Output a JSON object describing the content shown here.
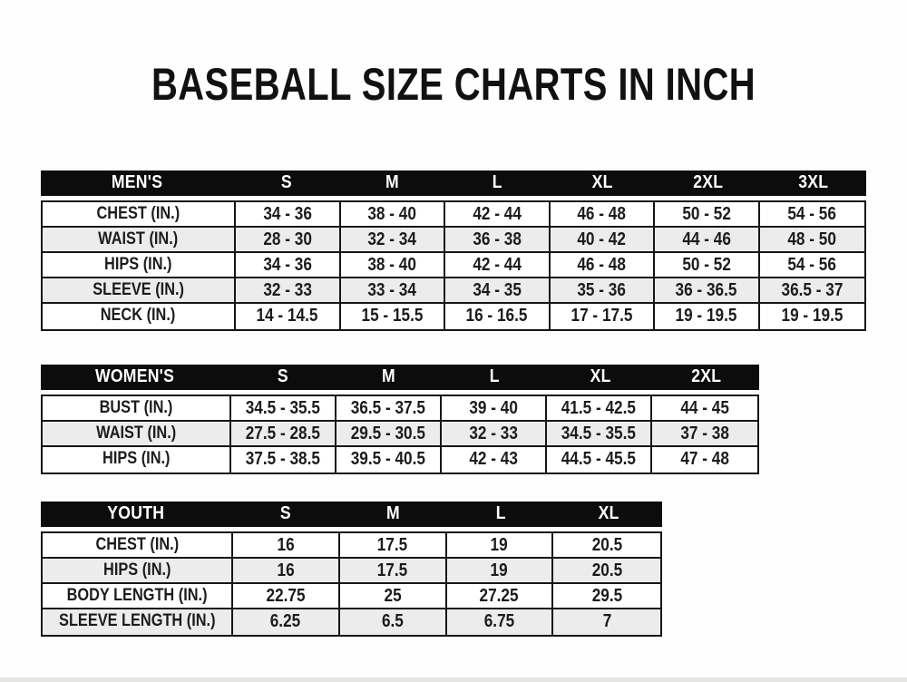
{
  "page": {
    "title": "BASEBALL SIZE CHARTS IN INCH"
  },
  "colors": {
    "page_bg": "#fefefe",
    "header_bg": "#0c0c0c",
    "header_text": "#ffffff",
    "row_alt_bg": "#ececec",
    "border": "#161616",
    "text": "#1c1c1c"
  },
  "tables": [
    {
      "id": "mens",
      "group_label": "MEN'S",
      "columns": [
        "S",
        "M",
        "L",
        "XL",
        "2XL",
        "3XL"
      ],
      "rows": [
        {
          "label": "CHEST (IN.)",
          "values": [
            "34 - 36",
            "38 - 40",
            "42 - 44",
            "46 - 48",
            "50 - 52",
            "54 - 56"
          ]
        },
        {
          "label": "WAIST (IN.)",
          "values": [
            "28 - 30",
            "32 - 34",
            "36 - 38",
            "40 - 42",
            "44 - 46",
            "48 - 50"
          ]
        },
        {
          "label": "HIPS (IN.)",
          "values": [
            "34 - 36",
            "38 - 40",
            "42 - 44",
            "46 - 48",
            "50 - 52",
            "54 - 56"
          ]
        },
        {
          "label": "SLEEVE (IN.)",
          "values": [
            "32 - 33",
            "33 - 34",
            "34 - 35",
            "35 - 36",
            "36 - 36.5",
            "36.5 - 37"
          ]
        },
        {
          "label": "NECK (IN.)",
          "values": [
            "14 - 14.5",
            "15 - 15.5",
            "16 - 16.5",
            "17 - 17.5",
            "19 - 19.5",
            "19 - 19.5"
          ]
        }
      ]
    },
    {
      "id": "womens",
      "group_label": "WOMEN'S",
      "columns": [
        "S",
        "M",
        "L",
        "XL",
        "2XL"
      ],
      "rows": [
        {
          "label": "BUST (IN.)",
          "values": [
            "34.5 - 35.5",
            "36.5 - 37.5",
            "39 - 40",
            "41.5 - 42.5",
            "44 - 45"
          ]
        },
        {
          "label": "WAIST (IN.)",
          "values": [
            "27.5 - 28.5",
            "29.5 - 30.5",
            "32 - 33",
            "34.5 - 35.5",
            "37 - 38"
          ]
        },
        {
          "label": "HIPS (IN.)",
          "values": [
            "37.5 - 38.5",
            "39.5 - 40.5",
            "42 - 43",
            "44.5 - 45.5",
            "47 - 48"
          ]
        }
      ]
    },
    {
      "id": "youth",
      "group_label": "YOUTH",
      "columns": [
        "S",
        "M",
        "L",
        "XL"
      ],
      "rows": [
        {
          "label": "CHEST (IN.)",
          "values": [
            "16",
            "17.5",
            "19",
            "20.5"
          ]
        },
        {
          "label": "HIPS (IN.)",
          "values": [
            "16",
            "17.5",
            "19",
            "20.5"
          ]
        },
        {
          "label": "BODY LENGTH (IN.)",
          "values": [
            "22.75",
            "25",
            "27.25",
            "29.5"
          ]
        },
        {
          "label": "SLEEVE LENGTH (IN.)",
          "values": [
            "6.25",
            "6.5",
            "6.75",
            "7"
          ]
        }
      ]
    }
  ]
}
